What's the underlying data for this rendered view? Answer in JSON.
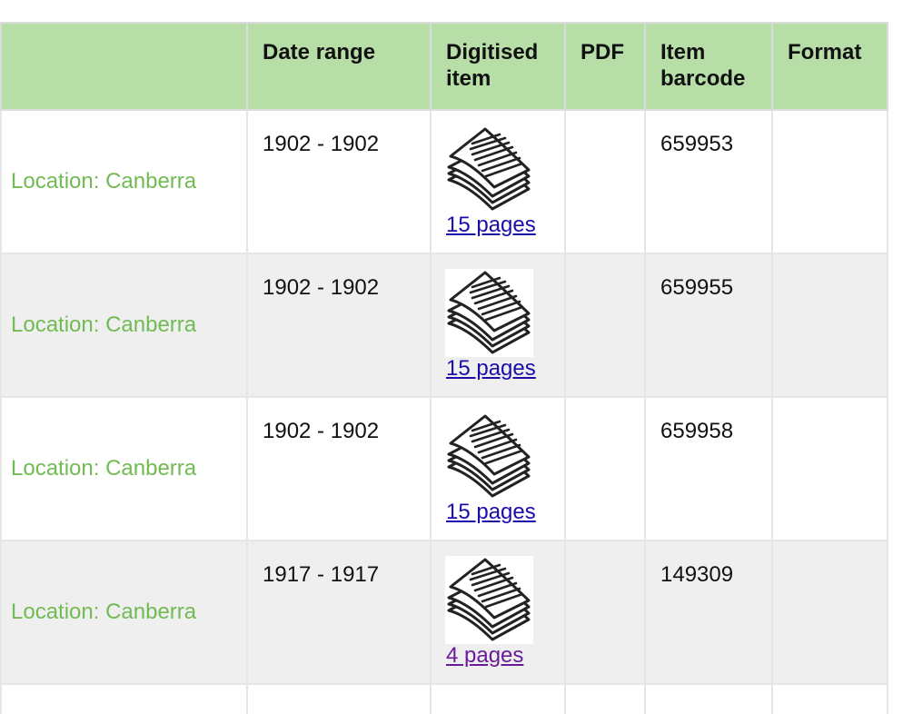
{
  "columns": [
    "",
    "Date range",
    "Digitised item",
    "PDF",
    "Item barcode",
    "Format"
  ],
  "rows": [
    {
      "location": "Location: Canberra",
      "date_range": "1902 - 1902",
      "digitised_icon": "document-stack-icon",
      "pages_link": "15 pages",
      "pdf": "",
      "barcode": "659953",
      "format": ""
    },
    {
      "location": "Location: Canberra",
      "date_range": "1902 - 1902",
      "digitised_icon": "document-stack-icon",
      "pages_link": "15 pages",
      "pdf": "",
      "barcode": "659955",
      "format": ""
    },
    {
      "location": "Location: Canberra",
      "date_range": "1902 - 1902",
      "digitised_icon": "document-stack-icon",
      "pages_link": "15 pages",
      "pdf": "",
      "barcode": "659958",
      "format": ""
    },
    {
      "location": "Location: Canberra",
      "date_range": "1917 - 1917",
      "digitised_icon": "document-stack-icon",
      "pages_link": "4 pages",
      "pdf": "",
      "barcode": "149309",
      "format": ""
    }
  ],
  "colors": {
    "header_bg": "#b6dea6",
    "location_text": "#72bb53",
    "link": "#1a0dab",
    "visited_link": "#6a1b9a",
    "alt_row_bg": "#efefef"
  }
}
